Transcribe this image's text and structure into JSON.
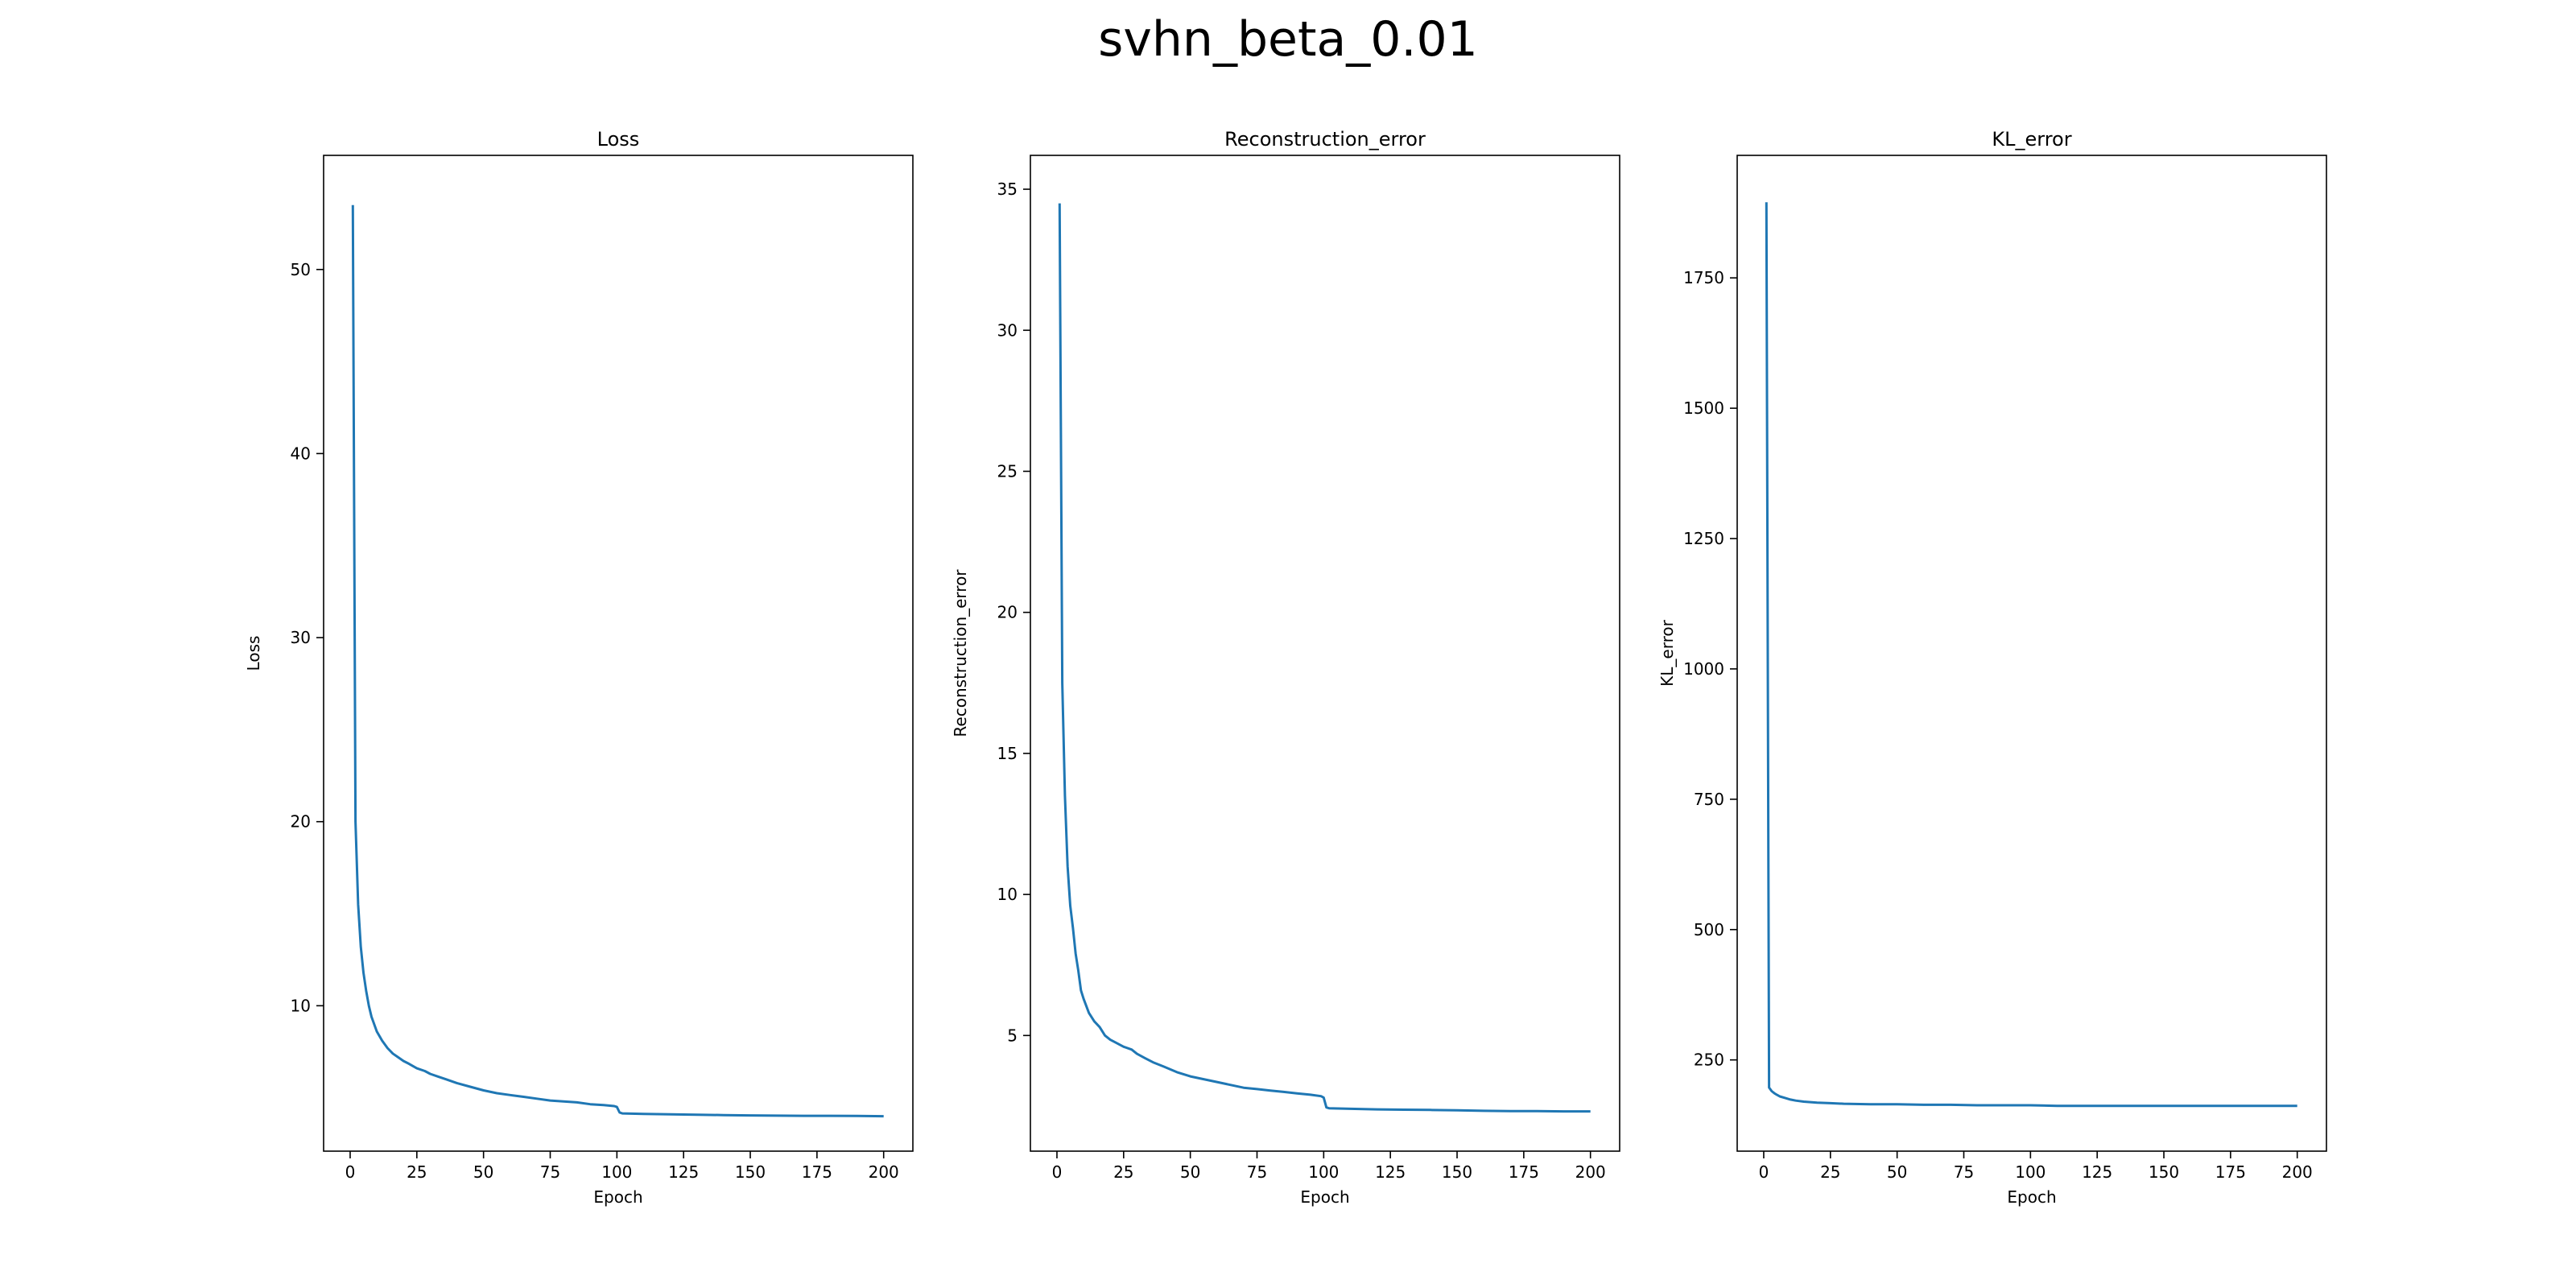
{
  "figure": {
    "suptitle": "svhn_beta_0.01",
    "line_color": "#1f77b4"
  },
  "chart_data": [
    {
      "type": "line",
      "title": "Loss",
      "xlabel": "Epoch",
      "ylabel": "Loss",
      "xlim": [
        -9.95,
        210.95
      ],
      "ylim": [
        2.1,
        56.2
      ],
      "xticks": [
        0,
        25,
        50,
        75,
        100,
        125,
        150,
        175,
        200
      ],
      "yticks": [
        10,
        20,
        30,
        40,
        50
      ],
      "grid": false,
      "series": [
        {
          "x": [
            1,
            2,
            3,
            4,
            5,
            6,
            7,
            8,
            9,
            10,
            12,
            14,
            16,
            18,
            20,
            22,
            25,
            28,
            30,
            33,
            36,
            40,
            45,
            50,
            55,
            60,
            65,
            70,
            75,
            80,
            85,
            90,
            95,
            99,
            100,
            101,
            102,
            110,
            120,
            130,
            140,
            150,
            160,
            170,
            180,
            190,
            200
          ],
          "y": [
            53.5,
            20.0,
            15.5,
            13.2,
            11.8,
            10.8,
            10.0,
            9.4,
            9.0,
            8.6,
            8.1,
            7.7,
            7.4,
            7.2,
            7.0,
            6.85,
            6.6,
            6.45,
            6.3,
            6.15,
            6.0,
            5.8,
            5.6,
            5.4,
            5.25,
            5.15,
            5.05,
            4.95,
            4.85,
            4.8,
            4.75,
            4.65,
            4.6,
            4.55,
            4.5,
            4.2,
            4.15,
            4.12,
            4.1,
            4.08,
            4.06,
            4.04,
            4.03,
            4.02,
            4.02,
            4.01,
            4.0
          ]
        }
      ]
    },
    {
      "type": "line",
      "title": "Reconstruction_error",
      "xlabel": "Epoch",
      "ylabel": "Reconstruction_error",
      "xlim": [
        -9.95,
        210.95
      ],
      "ylim": [
        0.9,
        36.2
      ],
      "xticks": [
        0,
        25,
        50,
        75,
        100,
        125,
        150,
        175,
        200
      ],
      "yticks": [
        5,
        10,
        15,
        20,
        25,
        30,
        35
      ],
      "grid": false,
      "series": [
        {
          "x": [
            1,
            2,
            3,
            4,
            5,
            6,
            7,
            8,
            9,
            10,
            12,
            14,
            16,
            18,
            20,
            22,
            25,
            28,
            30,
            33,
            36,
            40,
            45,
            50,
            55,
            60,
            65,
            70,
            75,
            80,
            85,
            90,
            95,
            99,
            100,
            101,
            102,
            110,
            120,
            130,
            140,
            150,
            160,
            170,
            180,
            190,
            200
          ],
          "y": [
            34.5,
            17.5,
            13.5,
            11.0,
            9.6,
            8.8,
            7.9,
            7.3,
            6.6,
            6.3,
            5.8,
            5.5,
            5.3,
            5.0,
            4.85,
            4.75,
            4.6,
            4.5,
            4.35,
            4.2,
            4.05,
            3.9,
            3.7,
            3.55,
            3.45,
            3.35,
            3.25,
            3.15,
            3.1,
            3.05,
            3.0,
            2.95,
            2.9,
            2.85,
            2.8,
            2.45,
            2.42,
            2.4,
            2.38,
            2.37,
            2.36,
            2.35,
            2.33,
            2.32,
            2.32,
            2.31,
            2.31
          ]
        }
      ]
    },
    {
      "type": "line",
      "title": "KL_error",
      "xlabel": "Epoch",
      "ylabel": "KL_error",
      "xlim": [
        -9.95,
        210.95
      ],
      "ylim": [
        75,
        1985
      ],
      "xticks": [
        0,
        25,
        50,
        75,
        100,
        125,
        150,
        175,
        200
      ],
      "yticks": [
        250,
        500,
        750,
        1000,
        1250,
        1500,
        1750
      ],
      "grid": false,
      "series": [
        {
          "x": [
            1,
            2,
            3,
            4,
            5,
            6,
            8,
            10,
            12,
            15,
            20,
            25,
            30,
            40,
            50,
            60,
            70,
            80,
            90,
            100,
            110,
            120,
            130,
            140,
            150,
            160,
            170,
            180,
            190,
            200
          ],
          "y": [
            1895,
            197,
            190,
            186,
            183,
            180,
            177,
            174,
            172,
            170,
            168,
            167,
            166,
            165,
            165,
            164,
            164,
            163,
            163,
            163,
            162,
            162,
            162,
            162,
            162,
            162,
            162,
            162,
            162,
            162
          ]
        }
      ]
    }
  ]
}
